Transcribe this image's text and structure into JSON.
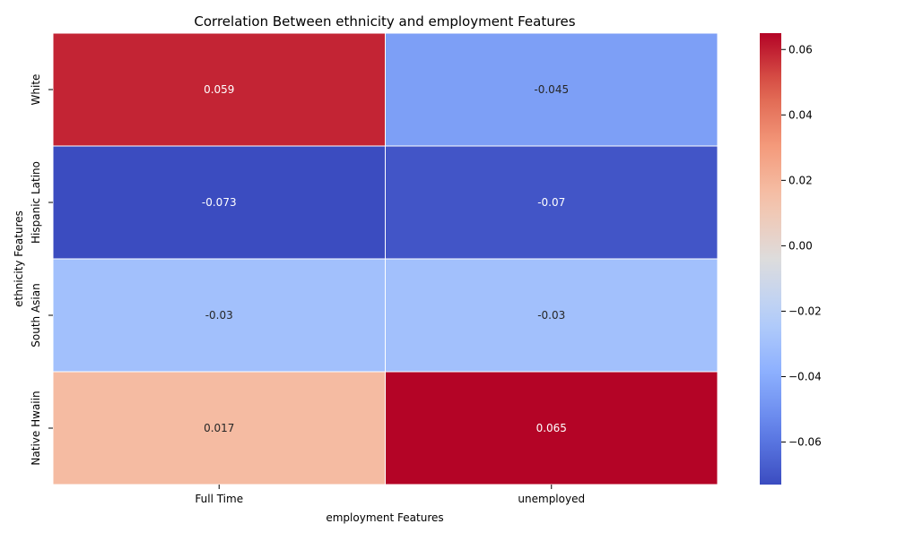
{
  "chart_data": {
    "type": "heatmap",
    "title": "Correlation Between ethnicity and employment Features",
    "xlabel": "employment Features",
    "ylabel": "ethnicity Features",
    "x_categories": [
      "Full Time",
      "unemployed"
    ],
    "y_categories": [
      "White",
      "Hispanic Latino",
      "South Asian",
      "Native Hwaiin"
    ],
    "values": [
      [
        0.059,
        -0.045
      ],
      [
        -0.073,
        -0.07
      ],
      [
        -0.03,
        -0.03
      ],
      [
        0.017,
        0.065
      ]
    ],
    "cell_labels": [
      [
        "0.059",
        "-0.045"
      ],
      [
        "-0.073",
        "-0.07"
      ],
      [
        "-0.03",
        "-0.03"
      ],
      [
        "0.017",
        "0.065"
      ]
    ],
    "colorbar": {
      "colormap": "coolwarm",
      "vmin": -0.073,
      "vmax": 0.065,
      "ticks": [
        0.06,
        0.04,
        0.02,
        0.0,
        -0.02,
        -0.04,
        -0.06
      ],
      "tick_labels": [
        "0.06",
        "0.04",
        "0.02",
        "0.00",
        "−0.02",
        "−0.04",
        "−0.06"
      ]
    }
  }
}
